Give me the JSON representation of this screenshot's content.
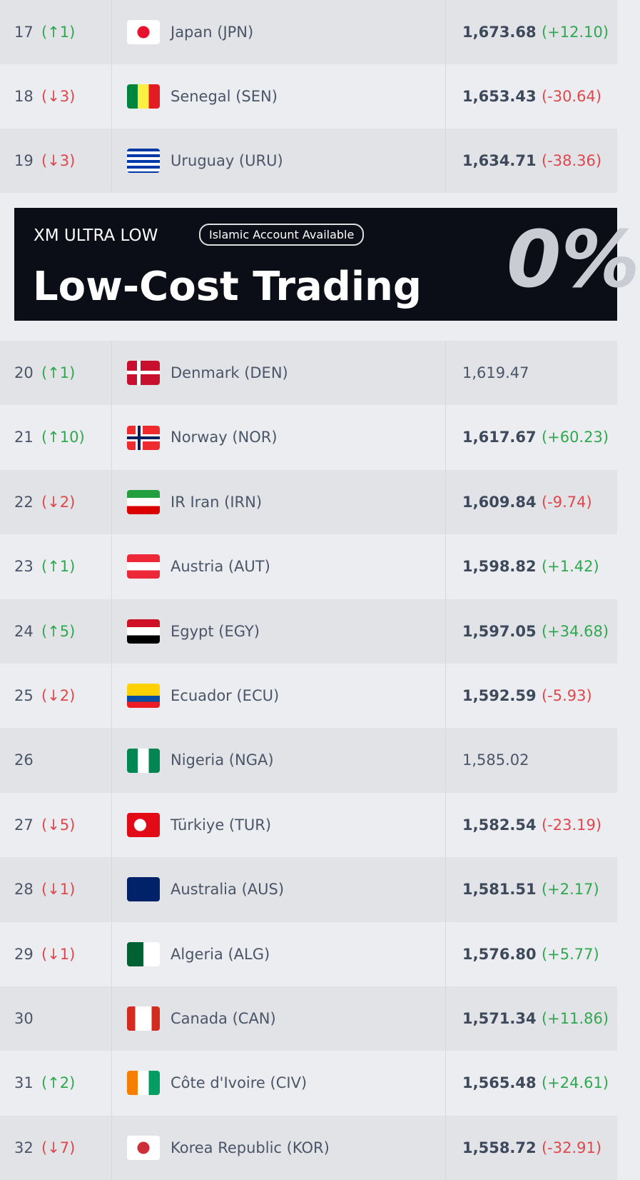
{
  "rows_before_ad": [
    {
      "rank": "17",
      "movement": "(↑1)",
      "team": "Japan (JPN)",
      "points": "1,673.68",
      "change": "(+12.10)"
    },
    {
      "rank": "18",
      "movement": "(↓3)",
      "team": "Senegal (SEN)",
      "points": "1,653.43",
      "change": "(-30.64)"
    },
    {
      "rank": "19",
      "movement": "(↓3)",
      "team": "Uruguay (URU)",
      "points": "1,634.71",
      "change": "(-38.36)"
    }
  ],
  "ad": {
    "kicker": "XM ULTRA LOW",
    "badge": "Islamic Account Available",
    "headline": "Low-Cost Trading",
    "graphic": "0%"
  },
  "rows_after_ad": [
    {
      "rank": "20",
      "movement": "(↑1)",
      "team": "Denmark (DEN)",
      "points": "1,619.47"
    },
    {
      "rank": "21",
      "movement": "(↑10)",
      "team": "Norway (NOR)",
      "points": "1,617.67",
      "change": "(+60.23)"
    },
    {
      "rank": "22",
      "movement": "(↓2)",
      "team": "IR Iran (IRN)",
      "points": "1,609.84",
      "change": "(-9.74)"
    },
    {
      "rank": "23",
      "movement": "(↑1)",
      "team": "Austria (AUT)",
      "points": "1,598.82",
      "change": "(+1.42)"
    },
    {
      "rank": "24",
      "movement": "(↑5)",
      "team": "Egypt (EGY)",
      "points": "1,597.05",
      "change": "(+34.68)"
    },
    {
      "rank": "25",
      "movement": "(↓2)",
      "team": "Ecuador (ECU)",
      "points": "1,592.59",
      "change": "(-5.93)"
    },
    {
      "rank": "26",
      "team": "Nigeria (NGA)",
      "points": "1,585.02"
    },
    {
      "rank": "27",
      "movement": "(↓5)",
      "team": "Türkiye (TUR)",
      "points": "1,582.54",
      "change": "(-23.19)"
    },
    {
      "rank": "28",
      "movement": "(↓1)",
      "team": "Australia (AUS)",
      "points": "1,581.51",
      "change": "(+2.17)"
    },
    {
      "rank": "29",
      "movement": "(↓1)",
      "team": "Algeria (ALG)",
      "points": "1,576.80",
      "change": "(+5.77)"
    },
    {
      "rank": "30",
      "team": "Canada (CAN)",
      "points": "1,571.34",
      "change": "(+11.86)"
    },
    {
      "rank": "31",
      "movement": "(↑2)",
      "team": "Côte d'Ivoire (CIV)",
      "points": "1,565.48",
      "change": "(+24.61)"
    },
    {
      "rank": "32",
      "movement": "(↓7)",
      "team": "Korea Republic (KOR)",
      "points": "1,558.72",
      "change": "(-32.91)"
    }
  ]
}
